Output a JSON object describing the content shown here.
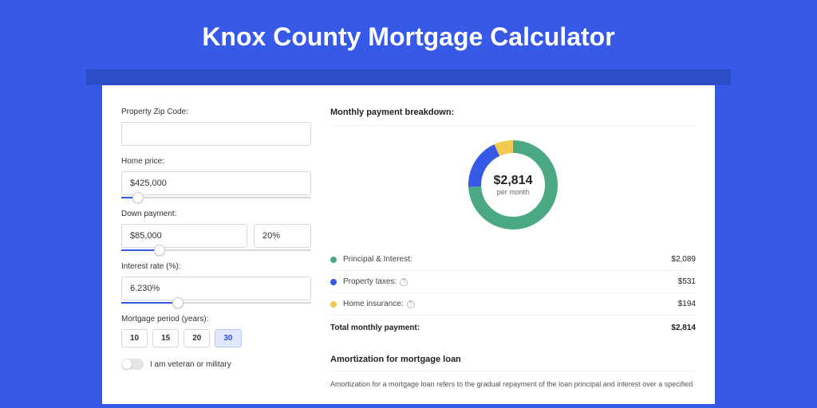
{
  "page": {
    "title": "Knox County Mortgage Calculator",
    "background_color": "#3759e8",
    "header_bar_color": "#2d4dc7"
  },
  "form": {
    "zip": {
      "label": "Property Zip Code:",
      "value": ""
    },
    "home_price": {
      "label": "Home price:",
      "value": "$425,000",
      "slider_percent": 9
    },
    "down_payment": {
      "label": "Down payment:",
      "amount": "$85,000",
      "percent": "20%",
      "slider_percent": 20
    },
    "interest_rate": {
      "label": "Interest rate (%):",
      "value": "6.230%",
      "slider_percent": 30
    },
    "period": {
      "label": "Mortgage period (years):",
      "options": [
        "10",
        "15",
        "20",
        "30"
      ],
      "selected": "30"
    },
    "veteran": {
      "label": "I am veteran or military",
      "checked": false
    }
  },
  "breakdown": {
    "header": "Monthly payment breakdown:",
    "donut": {
      "amount": "$2,814",
      "sub": "per month",
      "slices": [
        {
          "key": "principal_interest",
          "value": 2089,
          "color": "#4aa882"
        },
        {
          "key": "property_taxes",
          "value": 531,
          "color": "#3759e8"
        },
        {
          "key": "home_insurance",
          "value": 194,
          "color": "#f0c94e"
        }
      ],
      "stroke_width": 16
    },
    "rows": [
      {
        "dot_color": "#4aa882",
        "label": "Principal & Interest:",
        "info": false,
        "value": "$2,089"
      },
      {
        "dot_color": "#3759e8",
        "label": "Property taxes:",
        "info": true,
        "value": "$531"
      },
      {
        "dot_color": "#f0c94e",
        "label": "Home insurance:",
        "info": true,
        "value": "$194"
      }
    ],
    "total": {
      "label": "Total monthly payment:",
      "value": "$2,814"
    }
  },
  "amortization": {
    "header": "Amortization for mortgage loan",
    "text": "Amortization for a mortgage loan refers to the gradual repayment of the loan principal and interest over a specified"
  }
}
